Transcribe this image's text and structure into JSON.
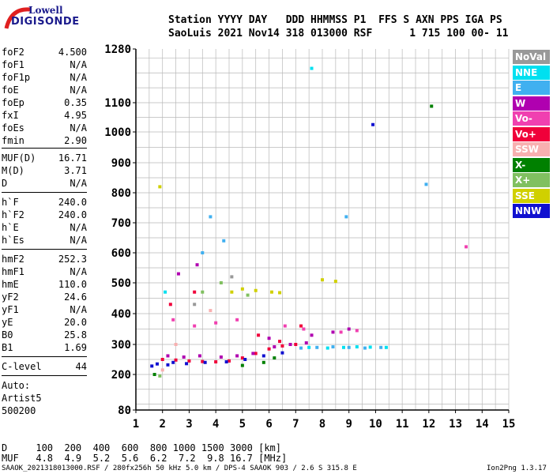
{
  "logo": {
    "line1": "Lowell",
    "line2": "DIGISONDE"
  },
  "header": {
    "line1": "Station YYYY DAY   DDD HHMMSS P1  FFS S AXN PPS IGA PS",
    "line2": "SaoLuis 2021 Nov14 318 013000 RSF      1 715 100 00- 11"
  },
  "params": {
    "group1": [
      {
        "name": "foF2",
        "value": "4.500"
      },
      {
        "name": "foF1",
        "value": "N/A"
      },
      {
        "name": "foF1p",
        "value": "N/A"
      },
      {
        "name": "foE",
        "value": "N/A"
      },
      {
        "name": "foEp",
        "value": "0.35"
      },
      {
        "name": "fxI",
        "value": "4.95"
      },
      {
        "name": "foEs",
        "value": "N/A"
      },
      {
        "name": "fmin",
        "value": "2.90"
      }
    ],
    "group2": [
      {
        "name": "MUF(D)",
        "value": "16.71"
      },
      {
        "name": "M(D)",
        "value": "3.71"
      },
      {
        "name": "D",
        "value": "N/A"
      }
    ],
    "group3": [
      {
        "name": "h`F",
        "value": "240.0"
      },
      {
        "name": "h`F2",
        "value": "240.0"
      },
      {
        "name": "h`E",
        "value": "N/A"
      },
      {
        "name": "h`Es",
        "value": "N/A"
      }
    ],
    "group4": [
      {
        "name": "hmF2",
        "value": "252.3"
      },
      {
        "name": "hmF1",
        "value": "N/A"
      },
      {
        "name": "hmE",
        "value": "110.0"
      },
      {
        "name": "yF2",
        "value": "24.6"
      },
      {
        "name": "yF1",
        "value": "N/A"
      },
      {
        "name": "yE",
        "value": "20.0"
      },
      {
        "name": "B0",
        "value": "25.8"
      },
      {
        "name": "B1",
        "value": "1.69"
      }
    ],
    "clevel": {
      "name": "C-level",
      "value": "44"
    },
    "auto": [
      "Auto:",
      "Artist5",
      "500200"
    ]
  },
  "legend": [
    {
      "label": "NoVal",
      "color": "#999999"
    },
    {
      "label": "NNE",
      "color": "#00e0f0"
    },
    {
      "label": "E",
      "color": "#40b0f0"
    },
    {
      "label": "W",
      "color": "#b000b0"
    },
    {
      "label": "Vo-",
      "color": "#f040b0"
    },
    {
      "label": "Vo+",
      "color": "#f0003a"
    },
    {
      "label": "SSW",
      "color": "#f8b0b0"
    },
    {
      "label": "X-",
      "color": "#008000"
    },
    {
      "label": "X+",
      "color": "#80c060"
    },
    {
      "label": "SSE",
      "color": "#d0d000"
    },
    {
      "label": "NNW",
      "color": "#1010d0"
    }
  ],
  "footer": {
    "d_row": "D     100  200  400  600  800 1000 1500 3000 [km]",
    "muf_row": "MUF   4.8  4.9  5.2  5.6  6.2  7.2  9.8 16.7 [MHz]",
    "file_info": "SAAOK_2021318013000.RSF / 280fx256h 50 kHz 5.0 km / DPS-4 SAAOK 903 / 2.6 S 315.8 E",
    "version": "Ion2Png 1.3.17"
  },
  "chart_data": {
    "type": "scatter",
    "title": "",
    "xlabel": "",
    "ylabel": "",
    "xlim": [
      1,
      15
    ],
    "ylim": [
      80,
      1280
    ],
    "y_scale": "nonlinear (ionogram virtual height)",
    "x_ticks": [
      1,
      2,
      3,
      4,
      5,
      6,
      7,
      8,
      9,
      10,
      11,
      12,
      13,
      14,
      15
    ],
    "y_ticks": [
      80,
      200,
      300,
      400,
      500,
      600,
      700,
      800,
      900,
      1000,
      1100,
      1280
    ],
    "grid": true,
    "legend_position": "right",
    "series": [
      {
        "name": "Vo+",
        "points": [
          [
            2.0,
            250
          ],
          [
            2.5,
            248
          ],
          [
            3.0,
            245
          ],
          [
            3.5,
            243
          ],
          [
            4.0,
            242
          ],
          [
            4.5,
            245
          ],
          [
            5.0,
            255
          ],
          [
            5.5,
            270
          ],
          [
            6.0,
            285
          ],
          [
            6.5,
            295
          ],
          [
            7.0,
            300
          ],
          [
            2.3,
            430
          ],
          [
            3.2,
            470
          ],
          [
            5.6,
            330
          ],
          [
            6.4,
            310
          ],
          [
            7.2,
            360
          ]
        ]
      },
      {
        "name": "W",
        "points": [
          [
            2.2,
            262
          ],
          [
            2.8,
            258
          ],
          [
            3.4,
            262
          ],
          [
            4.2,
            258
          ],
          [
            4.8,
            262
          ],
          [
            5.4,
            270
          ],
          [
            6.2,
            292
          ],
          [
            6.8,
            300
          ],
          [
            7.4,
            305
          ],
          [
            2.6,
            530
          ],
          [
            3.3,
            560
          ],
          [
            6.0,
            320
          ],
          [
            7.6,
            330
          ],
          [
            8.4,
            340
          ],
          [
            9.0,
            350
          ]
        ]
      },
      {
        "name": "NNW",
        "points": [
          [
            1.6,
            228
          ],
          [
            2.2,
            232
          ],
          [
            2.9,
            236
          ],
          [
            3.6,
            240
          ],
          [
            4.4,
            242
          ],
          [
            5.1,
            250
          ],
          [
            5.8,
            262
          ],
          [
            6.5,
            272
          ],
          [
            1.8,
            235
          ],
          [
            2.4,
            240
          ],
          [
            9.9,
            1025
          ]
        ]
      },
      {
        "name": "E",
        "points": [
          [
            7.2,
            288
          ],
          [
            7.8,
            290
          ],
          [
            8.4,
            292
          ],
          [
            9.0,
            290
          ],
          [
            9.6,
            288
          ],
          [
            10.2,
            290
          ],
          [
            3.5,
            600
          ],
          [
            4.3,
            640
          ],
          [
            3.8,
            720
          ],
          [
            8.9,
            720
          ],
          [
            11.9,
            828
          ]
        ]
      },
      {
        "name": "NNE",
        "points": [
          [
            7.5,
            290
          ],
          [
            8.2,
            288
          ],
          [
            8.8,
            290
          ],
          [
            9.3,
            292
          ],
          [
            9.8,
            291
          ],
          [
            10.4,
            290
          ],
          [
            2.1,
            470
          ],
          [
            7.6,
            1215
          ]
        ]
      },
      {
        "name": "SSE",
        "points": [
          [
            4.6,
            470
          ],
          [
            5.0,
            480
          ],
          [
            5.5,
            475
          ],
          [
            6.1,
            470
          ],
          [
            6.4,
            468
          ],
          [
            8.0,
            510
          ],
          [
            8.5,
            505
          ],
          [
            1.9,
            820
          ]
        ]
      },
      {
        "name": "Vo-",
        "points": [
          [
            2.4,
            380
          ],
          [
            3.2,
            360
          ],
          [
            4.0,
            370
          ],
          [
            4.8,
            380
          ],
          [
            6.6,
            360
          ],
          [
            7.3,
            350
          ],
          [
            8.7,
            340
          ],
          [
            9.3,
            345
          ],
          [
            13.4,
            620
          ]
        ]
      },
      {
        "name": "X-",
        "points": [
          [
            5.0,
            230
          ],
          [
            5.8,
            240
          ],
          [
            6.2,
            255
          ],
          [
            1.7,
            200
          ],
          [
            12.1,
            1088
          ]
        ]
      },
      {
        "name": "X+",
        "points": [
          [
            3.5,
            470
          ],
          [
            4.2,
            500
          ],
          [
            5.2,
            460
          ],
          [
            1.9,
            195
          ]
        ]
      },
      {
        "name": "SSW",
        "points": [
          [
            2.0,
            215
          ],
          [
            2.5,
            300
          ],
          [
            3.8,
            410
          ]
        ]
      },
      {
        "name": "NoVal",
        "points": [
          [
            3.2,
            430
          ],
          [
            4.6,
            520
          ]
        ]
      }
    ]
  }
}
